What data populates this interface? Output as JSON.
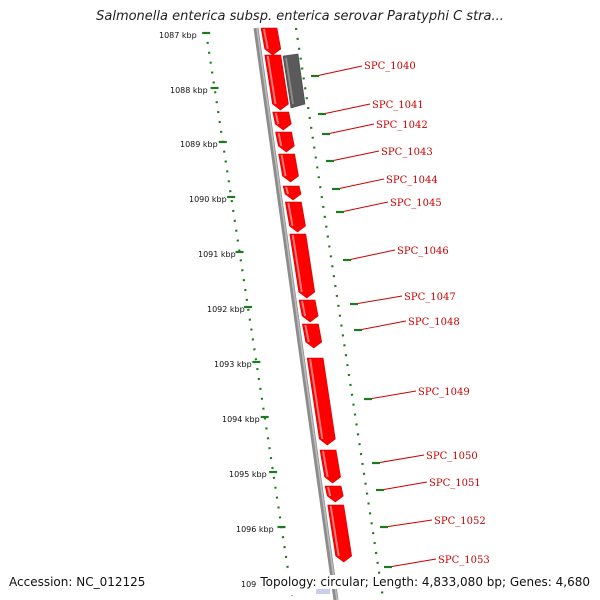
{
  "title": "Salmonella enterica subsp. enterica serovar Paratyphi C stra...",
  "footer": {
    "accession": "Accession: NC_012125",
    "topology": "Topology: circular; Length: 4,833,080 bp; Genes: 4,680"
  },
  "scale": {
    "unit": "kbp",
    "labels": [
      "1087 kbp",
      "1088 kbp",
      "1089 kbp",
      "1090 kbp",
      "1091 kbp",
      "1092 kbp",
      "1093 kbp",
      "1094 kbp",
      "1095 kbp",
      "1096 kbp",
      "109"
    ]
  },
  "genes": [
    {
      "name": "SPC_1040",
      "strand": "reverse"
    },
    {
      "name": "SPC_1041",
      "strand": "forward"
    },
    {
      "name": "SPC_1042",
      "strand": "forward"
    },
    {
      "name": "SPC_1043",
      "strand": "forward"
    },
    {
      "name": "SPC_1044",
      "strand": "forward"
    },
    {
      "name": "SPC_1045",
      "strand": "forward"
    },
    {
      "name": "SPC_1046",
      "strand": "forward"
    },
    {
      "name": "SPC_1047",
      "strand": "forward"
    },
    {
      "name": "SPC_1048",
      "strand": "forward"
    },
    {
      "name": "SPC_1049",
      "strand": "forward"
    },
    {
      "name": "SPC_1050",
      "strand": "forward"
    },
    {
      "name": "SPC_1051",
      "strand": "forward"
    },
    {
      "name": "SPC_1052",
      "strand": "forward"
    },
    {
      "name": "SPC_1053",
      "strand": "forward"
    }
  ],
  "colors": {
    "forward_gene": "#ff0000",
    "reverse_gene": "#5a5a5a",
    "backbone": "#8c8c8c",
    "tick": "#1f7a1f",
    "label": "#cc0000"
  }
}
